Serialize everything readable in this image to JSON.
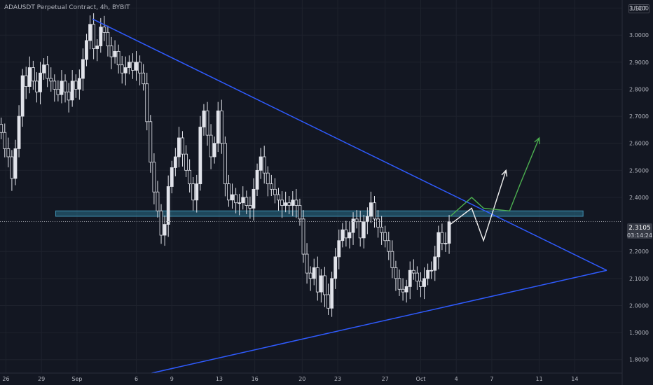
{
  "header": {
    "symbol_title": "ADAUSDT Perpetual Contract, 4h, BYBIT",
    "currency": "USDT"
  },
  "price_tag": {
    "value": "2.3105",
    "countdown": "03:14:24"
  },
  "colors": {
    "background": "#131722",
    "candle": "#e1e3ea",
    "trendline": "#2f5bff",
    "zone": "#2a6f8a",
    "projection_white": "#f0f0f0",
    "projection_green": "#4caf50",
    "axis_text": "#b2b5be"
  },
  "chart_data": {
    "type": "candlestick",
    "title": "ADAUSDT Perpetual Contract, 4h, BYBIT",
    "ylim": [
      1.75,
      3.13
    ],
    "y_ticks": [
      "3.1000",
      "3.0000",
      "2.9000",
      "2.8000",
      "2.7000",
      "2.6000",
      "2.5000",
      "2.4000",
      "2.2000",
      "2.1000",
      "2.0000",
      "1.9000",
      "1.8000"
    ],
    "y_top_label": "3",
    "x_ticks": [
      "26",
      "29",
      "Sep",
      "6",
      "9",
      "13",
      "16",
      "20",
      "23",
      "27",
      "Oct",
      "4",
      "7",
      "11",
      "14"
    ],
    "x_tick_days": [
      26,
      29,
      32,
      37,
      40,
      44,
      47,
      51,
      54,
      58,
      61,
      64,
      67,
      71,
      74
    ],
    "x_range_days": [
      25.5,
      78
    ],
    "last_price": 2.3105,
    "series_close": [
      [
        25.6,
        2.64
      ],
      [
        25.9,
        2.58
      ],
      [
        26.2,
        2.55
      ],
      [
        26.5,
        2.47
      ],
      [
        26.8,
        2.58
      ],
      [
        27.1,
        2.7
      ],
      [
        27.4,
        2.85
      ],
      [
        27.7,
        2.81
      ],
      [
        28.0,
        2.88
      ],
      [
        28.3,
        2.83
      ],
      [
        28.6,
        2.79
      ],
      [
        28.9,
        2.86
      ],
      [
        29.2,
        2.89
      ],
      [
        29.5,
        2.84
      ],
      [
        29.8,
        2.83
      ],
      [
        30.1,
        2.8
      ],
      [
        30.4,
        2.78
      ],
      [
        30.7,
        2.83
      ],
      [
        31.0,
        2.79
      ],
      [
        31.3,
        2.76
      ],
      [
        31.6,
        2.83
      ],
      [
        31.9,
        2.8
      ],
      [
        32.2,
        2.84
      ],
      [
        32.5,
        2.91
      ],
      [
        32.8,
        2.98
      ],
      [
        33.1,
        3.04
      ],
      [
        33.4,
        2.95
      ],
      [
        33.7,
        2.96
      ],
      [
        34.0,
        3.03
      ],
      [
        34.3,
        3.01
      ],
      [
        34.6,
        2.96
      ],
      [
        34.9,
        2.92
      ],
      [
        35.2,
        2.94
      ],
      [
        35.5,
        2.89
      ],
      [
        35.8,
        2.86
      ],
      [
        36.1,
        2.88
      ],
      [
        36.4,
        2.9
      ],
      [
        36.7,
        2.87
      ],
      [
        37.0,
        2.9
      ],
      [
        37.3,
        2.86
      ],
      [
        37.6,
        2.82
      ],
      [
        37.9,
        2.68
      ],
      [
        38.2,
        2.53
      ],
      [
        38.5,
        2.42
      ],
      [
        38.8,
        2.35
      ],
      [
        39.1,
        2.26
      ],
      [
        39.4,
        2.3
      ],
      [
        39.7,
        2.44
      ],
      [
        40.0,
        2.51
      ],
      [
        40.3,
        2.55
      ],
      [
        40.6,
        2.62
      ],
      [
        40.9,
        2.56
      ],
      [
        41.2,
        2.5
      ],
      [
        41.5,
        2.45
      ],
      [
        41.8,
        2.39
      ],
      [
        42.1,
        2.45
      ],
      [
        42.4,
        2.66
      ],
      [
        42.7,
        2.72
      ],
      [
        43.0,
        2.63
      ],
      [
        43.3,
        2.55
      ],
      [
        43.6,
        2.6
      ],
      [
        43.9,
        2.72
      ],
      [
        44.2,
        2.6
      ],
      [
        44.5,
        2.45
      ],
      [
        44.8,
        2.39
      ],
      [
        45.1,
        2.41
      ],
      [
        45.4,
        2.38
      ],
      [
        45.7,
        2.38
      ],
      [
        46.0,
        2.4
      ],
      [
        46.3,
        2.37
      ],
      [
        46.6,
        2.36
      ],
      [
        46.9,
        2.43
      ],
      [
        47.2,
        2.5
      ],
      [
        47.5,
        2.55
      ],
      [
        47.8,
        2.49
      ],
      [
        48.1,
        2.45
      ],
      [
        48.4,
        2.43
      ],
      [
        48.7,
        2.41
      ],
      [
        49.0,
        2.39
      ],
      [
        49.3,
        2.37
      ],
      [
        49.6,
        2.38
      ],
      [
        49.9,
        2.37
      ],
      [
        50.2,
        2.39
      ],
      [
        50.5,
        2.37
      ],
      [
        50.8,
        2.32
      ],
      [
        51.1,
        2.19
      ],
      [
        51.4,
        2.12
      ],
      [
        51.7,
        2.1
      ],
      [
        52.0,
        2.14
      ],
      [
        52.3,
        2.05
      ],
      [
        52.6,
        2.11
      ],
      [
        52.9,
        2.04
      ],
      [
        53.2,
        1.99
      ],
      [
        53.5,
        2.1
      ],
      [
        53.8,
        2.18
      ],
      [
        54.1,
        2.24
      ],
      [
        54.4,
        2.28
      ],
      [
        54.7,
        2.25
      ],
      [
        55.0,
        2.27
      ],
      [
        55.3,
        2.32
      ],
      [
        55.6,
        2.31
      ],
      [
        55.9,
        2.25
      ],
      [
        56.2,
        2.31
      ],
      [
        56.5,
        2.33
      ],
      [
        56.8,
        2.38
      ],
      [
        57.1,
        2.32
      ],
      [
        57.4,
        2.29
      ],
      [
        57.7,
        2.27
      ],
      [
        58.0,
        2.24
      ],
      [
        58.3,
        2.2
      ],
      [
        58.6,
        2.14
      ],
      [
        58.9,
        2.1
      ],
      [
        59.2,
        2.06
      ],
      [
        59.5,
        2.05
      ],
      [
        59.8,
        2.07
      ],
      [
        60.1,
        2.13
      ],
      [
        60.4,
        2.12
      ],
      [
        60.7,
        2.09
      ],
      [
        61.0,
        2.07
      ],
      [
        61.3,
        2.1
      ],
      [
        61.6,
        2.13
      ],
      [
        61.9,
        2.13
      ],
      [
        62.2,
        2.18
      ],
      [
        62.5,
        2.27
      ],
      [
        62.8,
        2.23
      ],
      [
        63.1,
        2.23
      ],
      [
        63.4,
        2.31
      ]
    ],
    "annotations": [
      {
        "type": "trendline",
        "label": "descending resistance",
        "points": [
          [
            33.3,
            3.06
          ],
          [
            76.7,
            2.13
          ]
        ]
      },
      {
        "type": "trendline",
        "label": "ascending support",
        "points": [
          [
            38.3,
            1.75
          ],
          [
            76.7,
            2.13
          ]
        ]
      },
      {
        "type": "zone",
        "label": "horizontal level",
        "x": [
          30.2,
          74.7
        ],
        "y": [
          2.33,
          2.35
        ]
      },
      {
        "type": "projection",
        "color": "white",
        "points": [
          [
            63.5,
            2.3
          ],
          [
            65.3,
            2.36
          ],
          [
            66.3,
            2.24
          ],
          [
            68.2,
            2.5
          ]
        ]
      },
      {
        "type": "projection",
        "color": "green",
        "points": [
          [
            63.5,
            2.33
          ],
          [
            65.3,
            2.4
          ],
          [
            66.3,
            2.36
          ],
          [
            68.5,
            2.35
          ],
          [
            69.4,
            2.45
          ],
          [
            71.0,
            2.62
          ]
        ]
      }
    ]
  }
}
